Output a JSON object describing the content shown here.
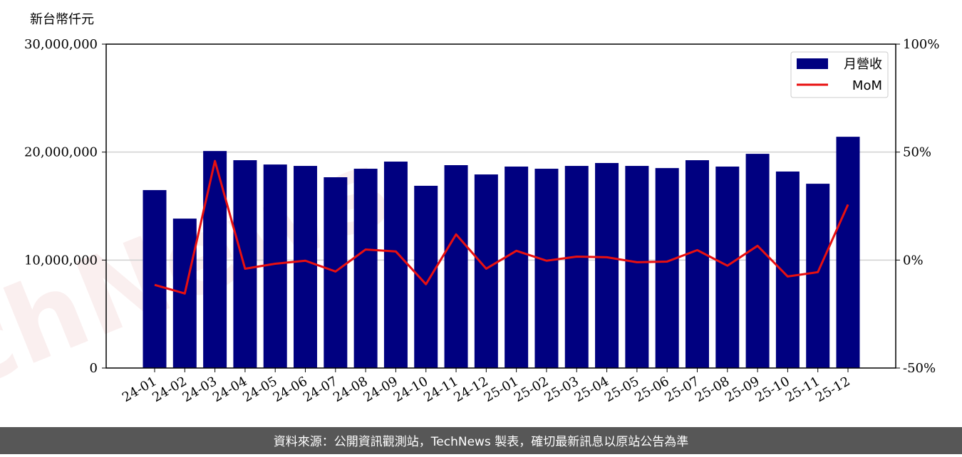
{
  "chart_data": {
    "type": "bar",
    "y_label": "新台幣仟元",
    "watermark": "TechNews",
    "footer": "資料來源：公開資訊觀測站，TechNews 製表，確切最新訊息以原站公告為準",
    "categories": [
      "24-01",
      "24-02",
      "24-03",
      "24-04",
      "24-05",
      "24-06",
      "24-07",
      "24-08",
      "24-09",
      "24-10",
      "24-11",
      "24-12",
      "25-01",
      "25-02",
      "25-03",
      "25-04",
      "25-05",
      "25-06",
      "25-07",
      "25-08",
      "25-09",
      "25-10",
      "25-11",
      "25-12"
    ],
    "series": [
      {
        "name": "月營收",
        "type": "bar",
        "color": "#000080",
        "values": [
          16480000,
          13840000,
          20100000,
          19250000,
          18850000,
          18720000,
          17670000,
          18460000,
          19120000,
          16880000,
          18790000,
          17930000,
          18660000,
          18460000,
          18720000,
          18990000,
          18720000,
          18520000,
          19250000,
          18660000,
          19840000,
          18200000,
          17070000,
          21420000
        ]
      },
      {
        "name": "MoM",
        "type": "line",
        "axis": "y2",
        "color": "#e81010",
        "values": [
          -11.5,
          -15.5,
          45.9,
          -4.0,
          -1.7,
          -0.3,
          -5.3,
          4.9,
          4.0,
          -11.2,
          11.9,
          -4.0,
          4.3,
          -0.3,
          1.6,
          1.3,
          -1.0,
          -0.7,
          4.6,
          -2.6,
          6.6,
          -7.6,
          -5.6,
          25.7
        ]
      }
    ],
    "ylim": [
      0,
      30000000
    ],
    "yticks": [
      0,
      {
        "value": 10000000,
        "label": "10,000,000"
      },
      {
        "value": 20000000,
        "label": "20,000,000"
      },
      {
        "value": 30000000,
        "label": "30,000,000"
      }
    ],
    "y2lim": [
      -50,
      100
    ],
    "y2ticks": [
      {
        "value": -50,
        "label": "-50%"
      },
      {
        "value": 0,
        "label": "0%"
      },
      {
        "value": 50,
        "label": "50%"
      },
      {
        "value": 100,
        "label": "100%"
      }
    ],
    "grid": true,
    "legend": "upper right"
  }
}
